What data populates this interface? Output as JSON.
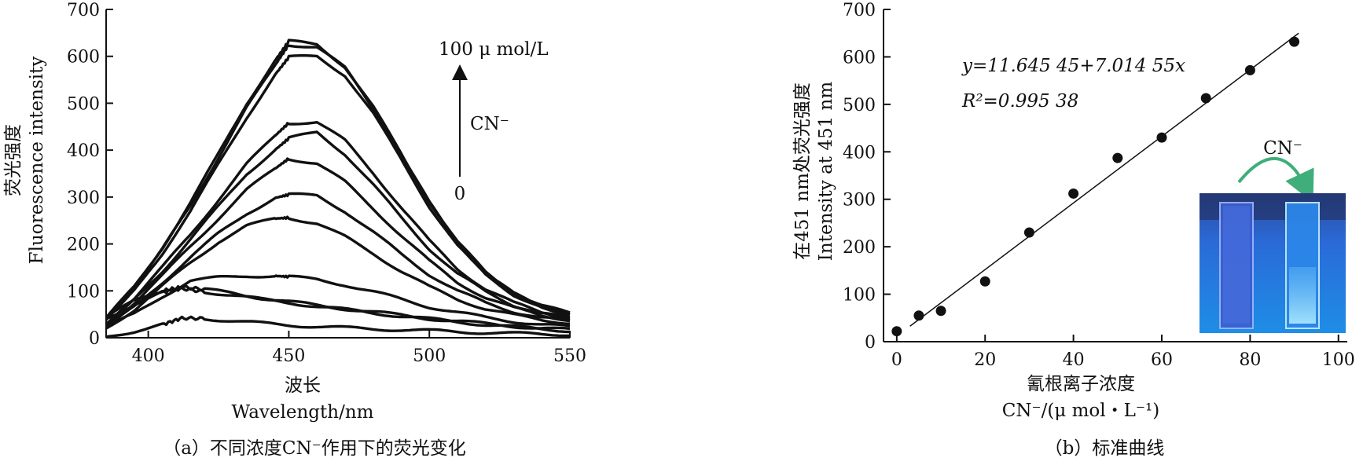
{
  "chart_data": [
    {
      "type": "line",
      "panel": "a",
      "caption": "（a）不同浓度CN⁻作用下的荧光变化",
      "ylabel_cn": "荧光强度",
      "ylabel_en": "Fluorescence intensity",
      "xlabel_cn": "波长",
      "xlabel_en": "Wavelength/nm",
      "xlim": [
        385,
        550
      ],
      "ylim": [
        0,
        700
      ],
      "xticks": [
        400,
        450,
        500,
        550
      ],
      "yticks": [
        0,
        100,
        200,
        300,
        400,
        500,
        600,
        700
      ],
      "annotation_top": "100 μ mol/L",
      "annotation_mid": "CN⁻",
      "annotation_bottom": "0",
      "grid": false,
      "series": [
        {
          "x": [
            385,
            395,
            405,
            412,
            420,
            430,
            440,
            450,
            460,
            470,
            480,
            490,
            500,
            510,
            520,
            530,
            540,
            550
          ],
          "y": [
            2,
            14,
            28,
            42,
            41,
            36,
            31,
            27,
            24,
            21,
            19,
            17,
            15,
            13,
            11,
            9,
            8,
            7
          ]
        },
        {
          "x": [
            385,
            395,
            405,
            412,
            420,
            430,
            440,
            450,
            460,
            470,
            480,
            490,
            500,
            510,
            520,
            530,
            540,
            550
          ],
          "y": [
            45,
            78,
            100,
            108,
            103,
            95,
            85,
            77,
            69,
            62,
            55,
            48,
            41,
            35,
            30,
            25,
            20,
            17
          ]
        },
        {
          "x": [
            385,
            395,
            405,
            412,
            420,
            430,
            440,
            450,
            460,
            470,
            480,
            490,
            500,
            510,
            520,
            530,
            540,
            550
          ],
          "y": [
            40,
            72,
            97,
            105,
            98,
            91,
            82,
            75,
            67,
            60,
            53,
            46,
            40,
            34,
            28,
            23,
            19,
            15
          ]
        },
        {
          "x": [
            385,
            395,
            405,
            415,
            425,
            435,
            445,
            450,
            460,
            470,
            480,
            490,
            500,
            510,
            520,
            530,
            540,
            550
          ],
          "y": [
            24,
            50,
            88,
            122,
            128,
            132,
            132,
            130,
            124,
            113,
            98,
            82,
            66,
            54,
            43,
            35,
            28,
            23
          ]
        },
        {
          "x": [
            385,
            395,
            405,
            415,
            425,
            435,
            445,
            450,
            460,
            470,
            480,
            490,
            500,
            510,
            520,
            530,
            540,
            550
          ],
          "y": [
            20,
            60,
            110,
            160,
            205,
            238,
            254,
            256,
            244,
            215,
            180,
            142,
            108,
            82,
            62,
            48,
            38,
            32
          ]
        },
        {
          "x": [
            385,
            395,
            405,
            415,
            425,
            435,
            445,
            450,
            460,
            470,
            480,
            490,
            500,
            510,
            520,
            530,
            540,
            550
          ],
          "y": [
            22,
            65,
            118,
            172,
            222,
            265,
            298,
            305,
            303,
            270,
            225,
            178,
            135,
            100,
            74,
            56,
            43,
            35
          ]
        },
        {
          "x": [
            385,
            395,
            405,
            415,
            425,
            435,
            445,
            450,
            460,
            470,
            480,
            490,
            500,
            510,
            520,
            530,
            540,
            550
          ],
          "y": [
            25,
            75,
            132,
            195,
            255,
            315,
            360,
            382,
            372,
            332,
            276,
            218,
            163,
            118,
            86,
            63,
            48,
            38
          ]
        },
        {
          "x": [
            385,
            395,
            405,
            415,
            425,
            435,
            445,
            450,
            460,
            470,
            480,
            490,
            500,
            510,
            520,
            530,
            540,
            550
          ],
          "y": [
            28,
            80,
            142,
            210,
            280,
            350,
            400,
            425,
            438,
            392,
            326,
            256,
            190,
            136,
            98,
            70,
            52,
            41
          ]
        },
        {
          "x": [
            385,
            395,
            405,
            415,
            425,
            435,
            445,
            450,
            460,
            470,
            480,
            490,
            500,
            510,
            520,
            530,
            540,
            550
          ],
          "y": [
            30,
            85,
            150,
            220,
            295,
            370,
            430,
            458,
            460,
            420,
            352,
            278,
            206,
            147,
            104,
            74,
            55,
            43
          ]
        },
        {
          "x": [
            385,
            395,
            405,
            415,
            425,
            435,
            445,
            450,
            460,
            470,
            480,
            490,
            500,
            510,
            520,
            530,
            540,
            550
          ],
          "y": [
            38,
            100,
            180,
            270,
            370,
            470,
            560,
            598,
            600,
            560,
            478,
            380,
            280,
            196,
            134,
            92,
            64,
            48
          ]
        },
        {
          "x": [
            385,
            395,
            405,
            415,
            425,
            435,
            445,
            450,
            460,
            470,
            480,
            490,
            500,
            510,
            520,
            530,
            540,
            550
          ],
          "y": [
            40,
            105,
            188,
            282,
            385,
            490,
            580,
            625,
            620,
            575,
            490,
            390,
            288,
            202,
            138,
            94,
            66,
            50
          ]
        },
        {
          "x": [
            385,
            395,
            405,
            415,
            425,
            435,
            445,
            450,
            460,
            470,
            480,
            490,
            500,
            510,
            520,
            530,
            540,
            550
          ],
          "y": [
            42,
            108,
            192,
            288,
            392,
            500,
            590,
            632,
            625,
            578,
            492,
            392,
            290,
            204,
            140,
            96,
            68,
            52
          ]
        }
      ]
    },
    {
      "type": "scatter",
      "panel": "b",
      "caption": "（b）标准曲线",
      "ylabel_cn": "在451 nm处荧光强度",
      "ylabel_en": "Intensity at 451 nm",
      "xlabel_cn": "氰根离子浓度",
      "xlabel_en": "CN⁻/(μ mol・L⁻¹)",
      "xlim": [
        -3,
        102
      ],
      "ylim": [
        0,
        700
      ],
      "xticks": [
        0,
        20,
        40,
        60,
        80,
        100
      ],
      "yticks": [
        0,
        100,
        200,
        300,
        400,
        500,
        600,
        700
      ],
      "equation": "y=11.645 45+7.014 55x",
      "r_squared": "R²=0.995 38",
      "fit": {
        "intercept": 11.64545,
        "slope": 7.01455
      },
      "inset_label": "CN⁻",
      "grid": false,
      "x": [
        0,
        5,
        10,
        20,
        30,
        40,
        50,
        60,
        70,
        80,
        90
      ],
      "y": [
        22,
        55,
        65,
        127,
        230,
        312,
        387,
        430,
        513,
        572,
        632
      ]
    }
  ]
}
